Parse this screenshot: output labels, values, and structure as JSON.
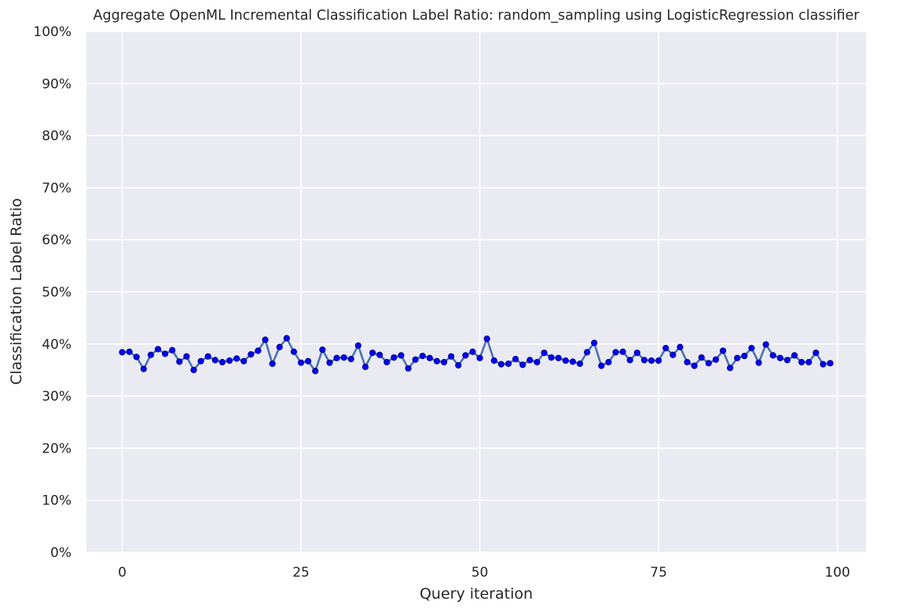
{
  "colors": {
    "background": "#eaeaf2",
    "grid": "#ffffff",
    "line": "#4c72b0",
    "marker": "#0000ff",
    "marker_edge": "#00008b",
    "text": "#262626"
  },
  "chart_data": {
    "type": "line",
    "title": "Aggregate OpenML Incremental Classification Label Ratio: random_sampling using LogisticRegression classifier",
    "xlabel": "Query iteration",
    "ylabel": "Classification Label Ratio",
    "xlim": [
      -5,
      104
    ],
    "ylim": [
      0,
      1
    ],
    "xticks": [
      0,
      25,
      50,
      75,
      100
    ],
    "xtick_labels": [
      "0",
      "25",
      "50",
      "75",
      "100"
    ],
    "yticks": [
      0,
      0.1,
      0.2,
      0.3,
      0.4,
      0.5,
      0.6,
      0.7,
      0.8,
      0.9,
      1.0
    ],
    "ytick_labels": [
      "0%",
      "10%",
      "20%",
      "30%",
      "40%",
      "50%",
      "60%",
      "70%",
      "80%",
      "90%",
      "100%"
    ],
    "grid": true,
    "legend": "none",
    "markers": true,
    "x": [
      0,
      1,
      2,
      3,
      4,
      5,
      6,
      7,
      8,
      9,
      10,
      11,
      12,
      13,
      14,
      15,
      16,
      17,
      18,
      19,
      20,
      21,
      22,
      23,
      24,
      25,
      26,
      27,
      28,
      29,
      30,
      31,
      32,
      33,
      34,
      35,
      36,
      37,
      38,
      39,
      40,
      41,
      42,
      43,
      44,
      45,
      46,
      47,
      48,
      49,
      50,
      51,
      52,
      53,
      54,
      55,
      56,
      57,
      58,
      59,
      60,
      61,
      62,
      63,
      64,
      65,
      66,
      67,
      68,
      69,
      70,
      71,
      72,
      73,
      74,
      75,
      76,
      77,
      78,
      79,
      80,
      81,
      82,
      83,
      84,
      85,
      86,
      87,
      88,
      89,
      90,
      91,
      92,
      93,
      94,
      95,
      96,
      97,
      98,
      99
    ],
    "values": [
      0.384,
      0.385,
      0.375,
      0.352,
      0.379,
      0.39,
      0.381,
      0.388,
      0.366,
      0.376,
      0.35,
      0.367,
      0.376,
      0.369,
      0.365,
      0.368,
      0.372,
      0.367,
      0.38,
      0.387,
      0.408,
      0.362,
      0.394,
      0.411,
      0.385,
      0.364,
      0.367,
      0.348,
      0.389,
      0.364,
      0.373,
      0.374,
      0.371,
      0.397,
      0.356,
      0.383,
      0.379,
      0.365,
      0.374,
      0.378,
      0.353,
      0.37,
      0.377,
      0.373,
      0.367,
      0.365,
      0.376,
      0.359,
      0.378,
      0.385,
      0.373,
      0.41,
      0.368,
      0.361,
      0.362,
      0.371,
      0.36,
      0.369,
      0.365,
      0.383,
      0.374,
      0.373,
      0.368,
      0.366,
      0.362,
      0.384,
      0.402,
      0.358,
      0.365,
      0.384,
      0.385,
      0.369,
      0.383,
      0.369,
      0.368,
      0.368,
      0.392,
      0.379,
      0.394,
      0.365,
      0.358,
      0.374,
      0.363,
      0.37,
      0.387,
      0.354,
      0.373,
      0.377,
      0.392,
      0.364,
      0.399,
      0.378,
      0.373,
      0.369,
      0.378,
      0.365,
      0.365,
      0.383,
      0.361,
      0.363
    ]
  }
}
